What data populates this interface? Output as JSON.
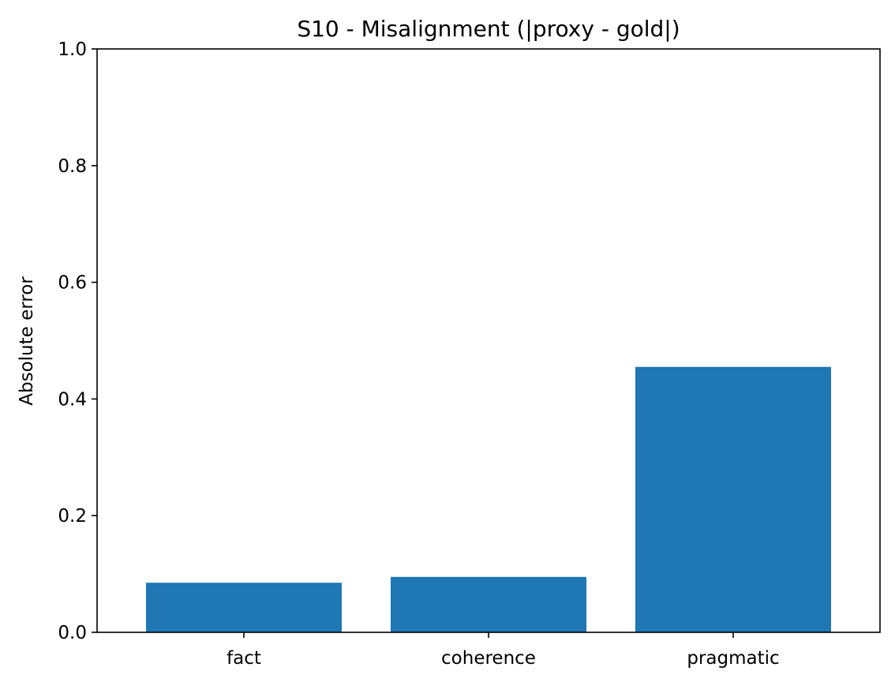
{
  "chart_data": {
    "type": "bar",
    "title": "S10 - Misalignment (|proxy - gold|)",
    "xlabel": "",
    "ylabel": "Absolute error",
    "categories": [
      "fact",
      "coherence",
      "pragmatic"
    ],
    "values": [
      0.085,
      0.095,
      0.455
    ],
    "ylim": [
      0.0,
      1.0
    ],
    "yticks": [
      "0.0",
      "0.2",
      "0.4",
      "0.6",
      "0.8",
      "1.0"
    ],
    "bar_color": "#1f77b4",
    "grid": false,
    "legend": "none"
  }
}
